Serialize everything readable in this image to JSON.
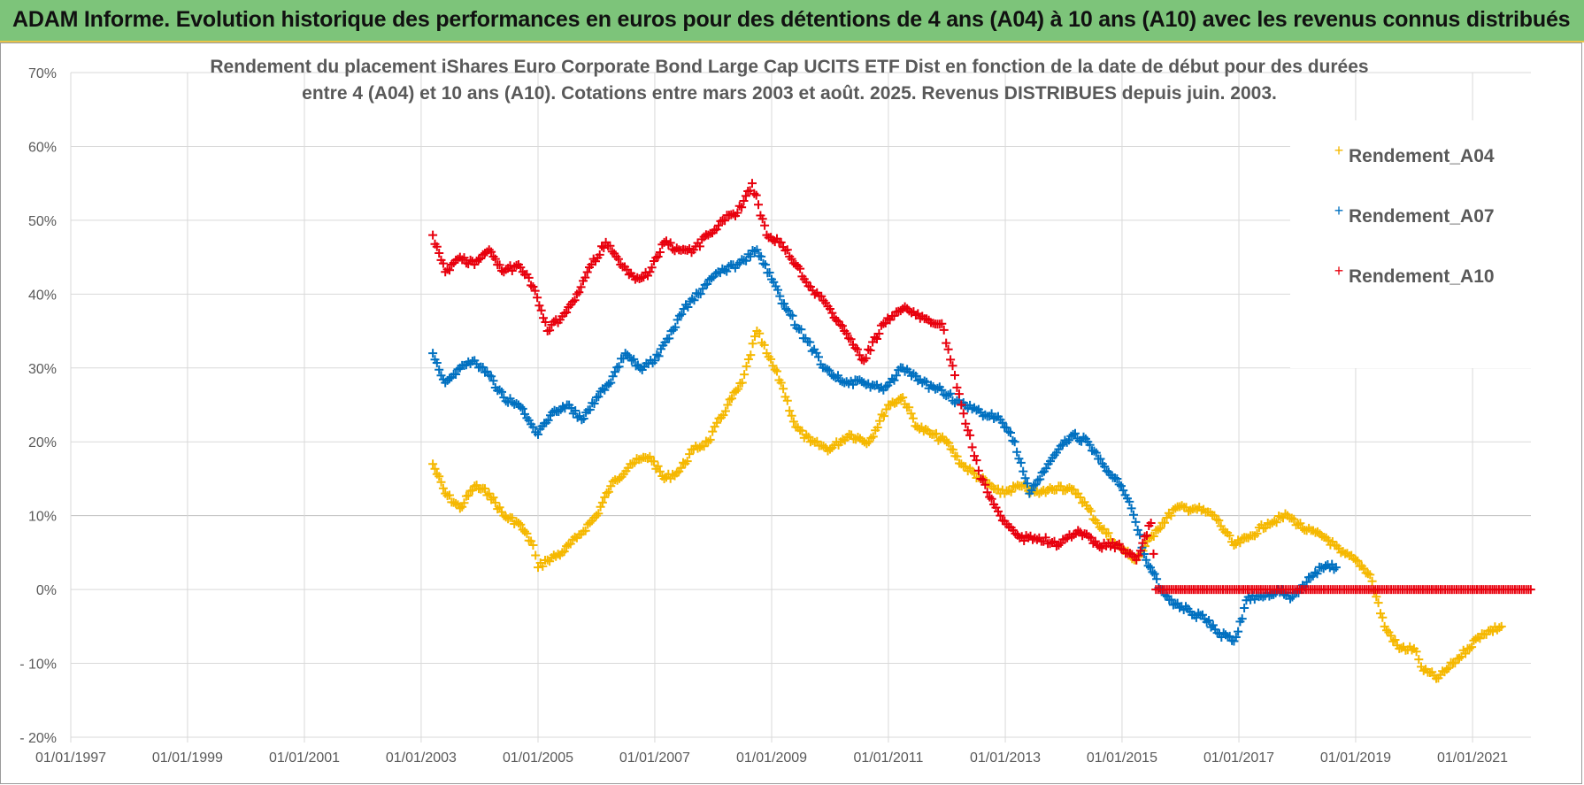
{
  "banner": {
    "title": "ADAM Informe. Evolution historique des performances en euros pour des détentions de 4 ans (A04) à 10 ans (A10) avec les revenus connus distribués"
  },
  "chart_data": {
    "type": "scatter",
    "title_lines": [
      "Rendement du placement iShares Euro Corporate Bond Large Cap UCITS ETF Dist en fonction de la date de début pour des durées",
      "entre 4 (A04) et 10 ans (A10).  Cotations entre mars 2003 et août. 2025. Revenus DISTRIBUES depuis juin. 2003."
    ],
    "xlabel": "",
    "ylabel": "",
    "xlim": [
      "1997-01-01",
      "2022-01-01"
    ],
    "ylim": [
      -20,
      70
    ],
    "x_ticks": [
      "01/01/1997",
      "01/01/1999",
      "01/01/2001",
      "01/01/2003",
      "01/01/2005",
      "01/01/2007",
      "01/01/2009",
      "01/01/2011",
      "01/01/2013",
      "01/01/2015",
      "01/01/2017",
      "01/01/2019",
      "01/01/2021"
    ],
    "y_ticks": [
      "70%",
      "60%",
      "50%",
      "40%",
      "30%",
      "20%",
      "10%",
      "0%",
      "- 10%",
      "- 20%"
    ],
    "grid": true,
    "legend_position": "top-right",
    "marker": "+",
    "series": [
      {
        "name": "Rendement_A04",
        "color": "#f5b800",
        "x": [
          "2003-03-15",
          "2003-06-01",
          "2003-09-01",
          "2003-12-01",
          "2004-03-01",
          "2004-06-01",
          "2004-09-01",
          "2004-12-01",
          "2005-01-01",
          "2005-03-01",
          "2005-06-01",
          "2005-09-01",
          "2006-01-01",
          "2006-04-01",
          "2006-08-01",
          "2006-12-01",
          "2007-03-01",
          "2007-06-01",
          "2007-09-01",
          "2007-12-01",
          "2008-04-01",
          "2008-07-01",
          "2008-10-01",
          "2008-12-01",
          "2009-03-01",
          "2009-06-01",
          "2009-09-01",
          "2010-01-01",
          "2010-05-01",
          "2010-09-01",
          "2011-01-01",
          "2011-04-01",
          "2011-07-01",
          "2011-10-01",
          "2012-01-01",
          "2012-04-01",
          "2012-08-01",
          "2012-12-01",
          "2013-04-01",
          "2013-08-01",
          "2013-12-01",
          "2014-04-01",
          "2014-08-01",
          "2014-12-01",
          "2015-04-01",
          "2015-08-01",
          "2015-12-01",
          "2016-04-01",
          "2016-08-01",
          "2016-12-01",
          "2017-03-01",
          "2017-07-01",
          "2017-11-01",
          "2018-03-01",
          "2018-07-01",
          "2018-10-01",
          "2019-01-01",
          "2019-04-01",
          "2019-07-01",
          "2019-10-01",
          "2020-01-01",
          "2020-03-01",
          "2020-06-01",
          "2020-09-01",
          "2020-12-01",
          "2021-03-01",
          "2021-07-01"
        ],
        "values": [
          17,
          13,
          11,
          14,
          13,
          10,
          9,
          6,
          3,
          4,
          5,
          7,
          10,
          14,
          17,
          18,
          15,
          16,
          19,
          20,
          25,
          28,
          35,
          32,
          28,
          22,
          20,
          19,
          21,
          20,
          25,
          26,
          22,
          21,
          20,
          17,
          15,
          13,
          14,
          13,
          14,
          13,
          9,
          6,
          4,
          8,
          11,
          11,
          10,
          6,
          7,
          9,
          10,
          8,
          7,
          5,
          4,
          2,
          -5,
          -8,
          -8,
          -11,
          -12,
          -10,
          -8,
          -6,
          -5
        ]
      },
      {
        "name": "Rendement_A07",
        "color": "#0070c0",
        "x": [
          "2003-03-15",
          "2003-06-01",
          "2003-09-01",
          "2003-12-01",
          "2004-03-01",
          "2004-06-01",
          "2004-09-01",
          "2004-12-01",
          "2005-01-01",
          "2005-04-01",
          "2005-07-01",
          "2005-10-01",
          "2006-01-01",
          "2006-04-01",
          "2006-07-01",
          "2006-10-01",
          "2007-01-01",
          "2007-04-01",
          "2007-07-01",
          "2007-10-01",
          "2008-02-01",
          "2008-06-01",
          "2008-10-01",
          "2009-01-01",
          "2009-04-01",
          "2009-08-01",
          "2009-12-01",
          "2010-04-01",
          "2010-08-01",
          "2010-12-01",
          "2011-04-01",
          "2011-08-01",
          "2011-12-01",
          "2012-04-01",
          "2012-08-01",
          "2012-12-01",
          "2013-03-01",
          "2013-06-01",
          "2013-09-01",
          "2013-12-01",
          "2014-03-01",
          "2014-06-01",
          "2014-09-01",
          "2014-12-01",
          "2015-03-01",
          "2015-06-01",
          "2015-09-01",
          "2015-12-01",
          "2016-03-01",
          "2016-06-01",
          "2016-09-01",
          "2016-12-01",
          "2017-03-01",
          "2017-06-01",
          "2017-09-01",
          "2017-12-01",
          "2018-03-01",
          "2018-06-01",
          "2018-09-01"
        ],
        "values": [
          32,
          28,
          30,
          31,
          29,
          26,
          25,
          22,
          21,
          24,
          25,
          23,
          26,
          28,
          32,
          30,
          31,
          34,
          38,
          40,
          43,
          44,
          46,
          42,
          38,
          34,
          30,
          28,
          28,
          27,
          30,
          28,
          27,
          25,
          24,
          23,
          20,
          13,
          16,
          19,
          21,
          20,
          17,
          15,
          11,
          4,
          0,
          -2,
          -3,
          -4,
          -6,
          -7,
          -1,
          -1,
          0,
          -1,
          1,
          3,
          3
        ]
      },
      {
        "name": "Rendement_A10",
        "color": "#e8000d",
        "x": [
          "2003-03-15",
          "2003-06-01",
          "2003-09-01",
          "2003-12-01",
          "2004-03-01",
          "2004-06-01",
          "2004-09-01",
          "2004-12-01",
          "2005-03-01",
          "2005-06-01",
          "2005-09-01",
          "2005-12-01",
          "2006-03-01",
          "2006-06-01",
          "2006-09-01",
          "2006-12-01",
          "2007-03-01",
          "2007-06-01",
          "2007-09-01",
          "2007-12-01",
          "2008-03-01",
          "2008-06-01",
          "2008-09-01",
          "2008-12-01",
          "2009-03-01",
          "2009-06-01",
          "2009-09-01",
          "2010-01-01",
          "2010-04-01",
          "2010-08-01",
          "2010-12-01",
          "2011-04-01",
          "2011-08-01",
          "2011-12-01",
          "2012-04-01",
          "2012-08-01",
          "2012-12-01",
          "2013-04-01",
          "2013-08-01",
          "2013-12-01",
          "2014-04-01",
          "2014-08-01",
          "2014-12-01",
          "2015-04-01",
          "2015-07-01",
          "2015-08-01",
          "2016-01-01",
          "2016-06-01",
          "2017-01-01",
          "2017-06-01",
          "2018-01-01",
          "2018-06-01",
          "2019-01-01",
          "2019-06-01",
          "2020-01-01",
          "2020-06-01",
          "2021-01-01",
          "2021-06-01",
          "2021-12-31"
        ],
        "values": [
          48,
          43,
          45,
          44,
          46,
          43,
          44,
          41,
          35,
          37,
          40,
          44,
          47,
          44,
          42,
          43,
          47,
          46,
          46,
          48,
          50,
          51,
          55,
          48,
          47,
          44,
          41,
          38,
          35,
          31,
          36,
          38,
          37,
          36,
          25,
          15,
          10,
          7,
          7,
          6,
          8,
          6,
          6,
          4,
          9,
          0,
          0,
          0,
          0,
          0,
          0,
          0,
          0,
          0,
          0,
          0,
          0,
          0,
          0
        ]
      }
    ]
  }
}
